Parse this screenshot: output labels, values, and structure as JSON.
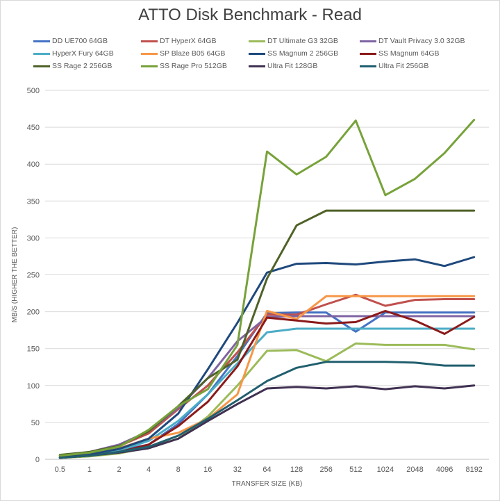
{
  "chart_data": {
    "type": "line",
    "title": "ATTO Disk Benchmark - Read",
    "xlabel": "TRANSFER SIZE (KB)",
    "ylabel": "MB/S (HIGHER THE BETTER)",
    "ylim": [
      0,
      500
    ],
    "yticks": [
      "0",
      "50",
      "100",
      "150",
      "200",
      "250",
      "300",
      "350",
      "400",
      "450",
      "500"
    ],
    "categories": [
      "0.5",
      "1",
      "2",
      "4",
      "8",
      "16",
      "32",
      "64",
      "128",
      "256",
      "512",
      "1024",
      "2048",
      "4096",
      "8192"
    ],
    "grid": true,
    "legend_position": "top",
    "series": [
      {
        "name": "DD UE700 64GB",
        "color": "#4472c4",
        "values": [
          3,
          6,
          12,
          20,
          48,
          88,
          140,
          198,
          199,
          199,
          173,
          199,
          199,
          199,
          199
        ]
      },
      {
        "name": "DT HyperX 64GB",
        "color": "#c0504d",
        "values": [
          5,
          9,
          18,
          35,
          68,
          100,
          145,
          196,
          196,
          210,
          223,
          208,
          216,
          217,
          217
        ]
      },
      {
        "name": "DT Ultimate G3 32GB",
        "color": "#9bbb59",
        "values": [
          2,
          4,
          8,
          16,
          28,
          58,
          100,
          147,
          148,
          133,
          157,
          155,
          155,
          155,
          149
        ]
      },
      {
        "name": "DT Vault Privacy 3.0 32GB",
        "color": "#8064a2",
        "values": [
          5,
          10,
          20,
          38,
          70,
          110,
          160,
          193,
          194,
          194,
          194,
          194,
          194,
          194,
          194
        ]
      },
      {
        "name": "HyperX Fury 64GB",
        "color": "#4bacc6",
        "values": [
          3,
          6,
          12,
          25,
          52,
          88,
          130,
          172,
          177,
          177,
          177,
          177,
          177,
          177,
          177
        ]
      },
      {
        "name": "SP Blaze B05 64GB",
        "color": "#f79646",
        "values": [
          3,
          7,
          15,
          28,
          36,
          55,
          88,
          201,
          190,
          221,
          221,
          221,
          221,
          221,
          221
        ]
      },
      {
        "name": "SS Magnum 2 256GB",
        "color": "#1f497d",
        "values": [
          3,
          7,
          14,
          28,
          62,
          122,
          185,
          253,
          265,
          266,
          264,
          268,
          271,
          262,
          274
        ]
      },
      {
        "name": "SS Magnum 64GB",
        "color": "#8b1a1a",
        "values": [
          2,
          5,
          10,
          20,
          45,
          78,
          126,
          192,
          188,
          184,
          186,
          201,
          188,
          170,
          193
        ]
      },
      {
        "name": "SS Rage 2 256GB",
        "color": "#4f6228",
        "values": [
          6,
          10,
          18,
          38,
          72,
          110,
          135,
          245,
          317,
          337,
          337,
          337,
          337,
          337,
          337
        ]
      },
      {
        "name": "SS Rage Pro 512GB",
        "color": "#77a23a",
        "values": [
          5,
          9,
          17,
          40,
          72,
          95,
          155,
          417,
          386,
          410,
          459,
          358,
          380,
          415,
          460
        ]
      },
      {
        "name": "Ultra Fit 128GB",
        "color": "#403152",
        "values": [
          2,
          5,
          9,
          15,
          28,
          52,
          75,
          96,
          98,
          96,
          99,
          95,
          99,
          96,
          100
        ]
      },
      {
        "name": "Ultra Fit 256GB",
        "color": "#215f6e",
        "values": [
          2,
          5,
          10,
          17,
          32,
          55,
          80,
          106,
          124,
          132,
          132,
          132,
          131,
          127,
          127
        ]
      }
    ]
  }
}
